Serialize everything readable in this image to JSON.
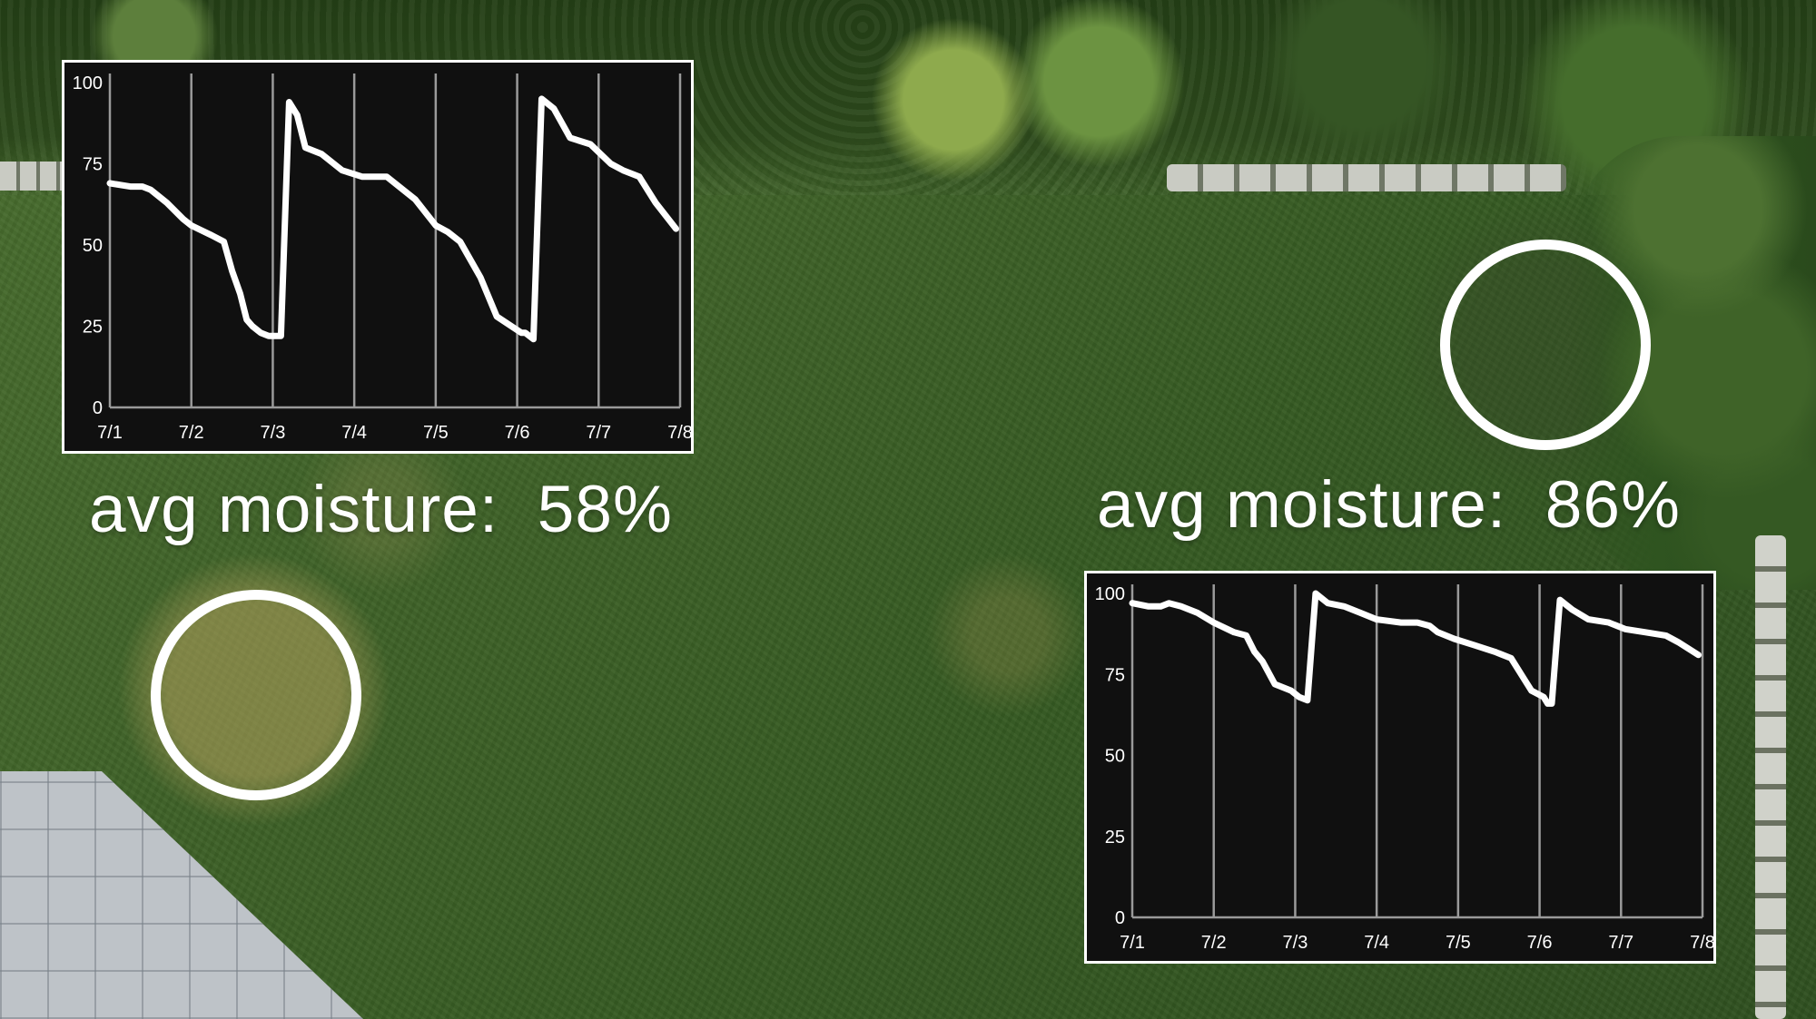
{
  "labels": {
    "left": "avg moisture:  58%",
    "right": "avg moisture:  86%"
  },
  "colors": {
    "chart_background": "#101010",
    "chart_line": "#ffffff",
    "gridline": "#9a9a9a",
    "annotation": "#ffffff"
  },
  "chart_data": [
    {
      "type": "line",
      "title": "",
      "xlabel": "",
      "ylabel": "",
      "x_ticks": [
        "7/1",
        "7/2",
        "7/3",
        "7/4",
        "7/5",
        "7/6",
        "7/7",
        "7/8"
      ],
      "y_ticks": [
        0,
        25,
        50,
        75,
        100
      ],
      "xlim": [
        0,
        7
      ],
      "ylim": [
        0,
        100
      ],
      "grid": "vertical",
      "series": [
        {
          "x": [
            0,
            0.25,
            0.4,
            0.5,
            0.7,
            0.9,
            1.0,
            1.25,
            1.4,
            1.5,
            1.6,
            1.68,
            1.75,
            1.85,
            1.95,
            2.05,
            2.1,
            2.2,
            2.3,
            2.4,
            2.6,
            2.85,
            3.1,
            3.4,
            3.75,
            4.0,
            4.15,
            4.3,
            4.55,
            4.75,
            5.05,
            5.1,
            5.2,
            5.3,
            5.45,
            5.65,
            5.9,
            6.15,
            6.3,
            6.5,
            6.7,
            6.95
          ],
          "y": [
            69,
            68,
            68,
            67,
            63,
            58,
            56,
            53,
            51,
            42,
            35,
            27,
            25,
            23,
            22,
            22,
            22,
            94,
            90,
            80,
            78,
            73,
            71,
            71,
            64,
            56,
            54,
            51,
            40,
            28,
            23,
            23,
            21,
            95,
            92,
            83,
            81,
            75,
            73,
            71,
            63,
            55
          ],
          "y_range": [
            21,
            95
          ]
        }
      ]
    },
    {
      "type": "line",
      "title": "",
      "xlabel": "",
      "ylabel": "",
      "x_ticks": [
        "7/1",
        "7/2",
        "7/3",
        "7/4",
        "7/5",
        "7/6",
        "7/7",
        "7/8"
      ],
      "y_ticks": [
        0,
        25,
        50,
        75,
        100
      ],
      "xlim": [
        0,
        7
      ],
      "ylim": [
        0,
        100
      ],
      "grid": "vertical",
      "series": [
        {
          "x": [
            0,
            0.2,
            0.35,
            0.45,
            0.6,
            0.8,
            1.0,
            1.25,
            1.4,
            1.5,
            1.6,
            1.75,
            1.95,
            2.05,
            2.15,
            2.25,
            2.4,
            2.6,
            2.8,
            3.0,
            3.3,
            3.5,
            3.65,
            3.75,
            3.95,
            4.2,
            4.45,
            4.65,
            4.8,
            4.9,
            5.05,
            5.1,
            5.15,
            5.25,
            5.4,
            5.6,
            5.85,
            6.05,
            6.3,
            6.55,
            6.7,
            6.95
          ],
          "y": [
            97,
            96,
            96,
            97,
            96,
            94,
            91,
            88,
            87,
            82,
            79,
            72,
            70,
            68,
            67,
            100,
            97,
            96,
            94,
            92,
            91,
            91,
            90,
            88,
            86,
            84,
            82,
            80,
            74,
            70,
            68,
            66,
            66,
            98,
            95,
            92,
            91,
            89,
            88,
            87,
            85,
            81
          ],
          "y_range": [
            66,
            100
          ]
        }
      ]
    }
  ]
}
